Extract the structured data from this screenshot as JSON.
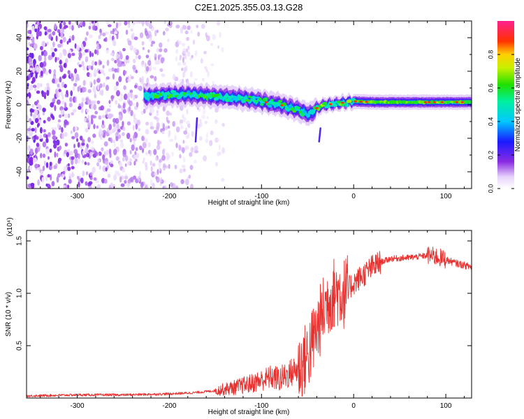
{
  "title": "C2E1.2025.355.03.13.G28",
  "colors": {
    "snr_line": "#e8302e",
    "axis": "#000000",
    "spectrum_base": "#6a1fe0"
  },
  "chart_data": [
    {
      "type": "heatmap",
      "name": "spectrogram",
      "xlabel": "Height of straight line (km)",
      "ylabel": "Frequency (Hz)",
      "xlim": [
        -355,
        128
      ],
      "ylim": [
        -50,
        50
      ],
      "xticks": [
        -300,
        -200,
        -100,
        0,
        100
      ],
      "xtick_labels": [
        "-300",
        "-200",
        "-100",
        "0",
        "100"
      ],
      "yticks": [
        -40,
        -20,
        0,
        20,
        40
      ],
      "ytick_labels": [
        "-40",
        "-20",
        "0",
        "20",
        "40"
      ],
      "colorbar": {
        "label": "Normalized spectral amplitude",
        "range": [
          0,
          1
        ],
        "ticks": [
          0,
          0.2,
          0.4,
          0.6,
          0.8
        ],
        "tick_labels": [
          "0.0",
          "0.2",
          "0.4",
          "0.6",
          "0.8"
        ],
        "colormap": "rainbow (white-violet-blue-cyan-green-yellow-red-magenta)"
      },
      "features": {
        "broadband_noise_region_km": [
          -355,
          -150
        ],
        "signal_track": [
          {
            "x": -225,
            "f": 5
          },
          {
            "x": -200,
            "f": 6
          },
          {
            "x": -175,
            "f": 6
          },
          {
            "x": -150,
            "f": 5
          },
          {
            "x": -125,
            "f": 4
          },
          {
            "x": -100,
            "f": 2
          },
          {
            "x": -80,
            "f": 0
          },
          {
            "x": -60,
            "f": -3
          },
          {
            "x": -48,
            "f": -6
          },
          {
            "x": -40,
            "f": -2
          },
          {
            "x": -30,
            "f": 0
          },
          {
            "x": -15,
            "f": 1
          },
          {
            "x": 0,
            "f": 2
          },
          {
            "x": 25,
            "f": 1.5
          },
          {
            "x": 50,
            "f": 1.5
          },
          {
            "x": 75,
            "f": 1.5
          },
          {
            "x": 100,
            "f": 1.5
          },
          {
            "x": 128,
            "f": 1.5
          }
        ]
      }
    },
    {
      "type": "line",
      "name": "snr",
      "xlabel": "Height of straight line (km)",
      "ylabel": "SNR (10 * v/v)",
      "y_multiplier_label": "(x10⁴)",
      "xlim": [
        -355,
        128
      ],
      "ylim": [
        0,
        1.6
      ],
      "xticks": [
        -300,
        -200,
        -100,
        0,
        100
      ],
      "xtick_labels": [
        "-300",
        "-200",
        "-100",
        "0",
        "100"
      ],
      "yticks": [
        0.5,
        1.0,
        1.5
      ],
      "ytick_labels": [
        "0.5",
        "1.0",
        "1.5"
      ],
      "series": [
        {
          "name": "SNR",
          "x": [
            -355,
            -300,
            -250,
            -200,
            -175,
            -150,
            -130,
            -115,
            -100,
            -90,
            -80,
            -70,
            -60,
            -50,
            -40,
            -30,
            -20,
            -10,
            0,
            10,
            20,
            30,
            40,
            60,
            80,
            90,
            100,
            110,
            128
          ],
          "y": [
            0.02,
            0.03,
            0.03,
            0.04,
            0.05,
            0.07,
            0.1,
            0.13,
            0.17,
            0.2,
            0.18,
            0.23,
            0.28,
            0.4,
            0.65,
            0.9,
            1.02,
            1.0,
            1.1,
            1.17,
            1.25,
            1.3,
            1.33,
            1.34,
            1.36,
            1.35,
            1.32,
            1.29,
            1.25
          ]
        }
      ]
    }
  ]
}
